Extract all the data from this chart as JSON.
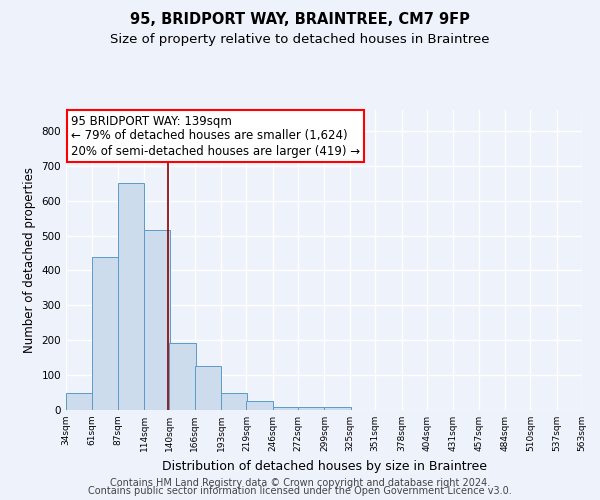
{
  "title1": "95, BRIDPORT WAY, BRAINTREE, CM7 9FP",
  "title2": "Size of property relative to detached houses in Braintree",
  "xlabel": "Distribution of detached houses by size in Braintree",
  "ylabel": "Number of detached properties",
  "bar_values": [
    50,
    440,
    650,
    515,
    193,
    126,
    50,
    26,
    10,
    8,
    8,
    0,
    0,
    0,
    0,
    0,
    0,
    0,
    0,
    0
  ],
  "bin_edges": [
    34,
    61,
    87,
    114,
    140,
    166,
    193,
    219,
    246,
    272,
    299,
    325,
    351,
    378,
    404,
    431,
    457,
    484,
    510,
    537,
    563
  ],
  "x_tick_labels": [
    "34sqm",
    "61sqm",
    "87sqm",
    "114sqm",
    "140sqm",
    "166sqm",
    "193sqm",
    "219sqm",
    "246sqm",
    "272sqm",
    "299sqm",
    "325sqm",
    "351sqm",
    "378sqm",
    "404sqm",
    "431sqm",
    "457sqm",
    "484sqm",
    "510sqm",
    "537sqm",
    "563sqm"
  ],
  "bar_color": "#ccdcec",
  "bar_edge_color": "#5a9bc8",
  "red_line_x": 139,
  "ylim": [
    0,
    860
  ],
  "yticks": [
    0,
    100,
    200,
    300,
    400,
    500,
    600,
    700,
    800
  ],
  "annotation_lines": [
    "95 BRIDPORT WAY: 139sqm",
    "← 79% of detached houses are smaller (1,624)",
    "20% of semi-detached houses are larger (419) →"
  ],
  "footer1": "Contains HM Land Registry data © Crown copyright and database right 2024.",
  "footer2": "Contains public sector information licensed under the Open Government Licence v3.0.",
  "background_color": "#eef2fb",
  "title1_fontsize": 10.5,
  "title2_fontsize": 9.5,
  "xlabel_fontsize": 9,
  "ylabel_fontsize": 8.5,
  "annotation_fontsize": 8.5,
  "footer_fontsize": 7
}
